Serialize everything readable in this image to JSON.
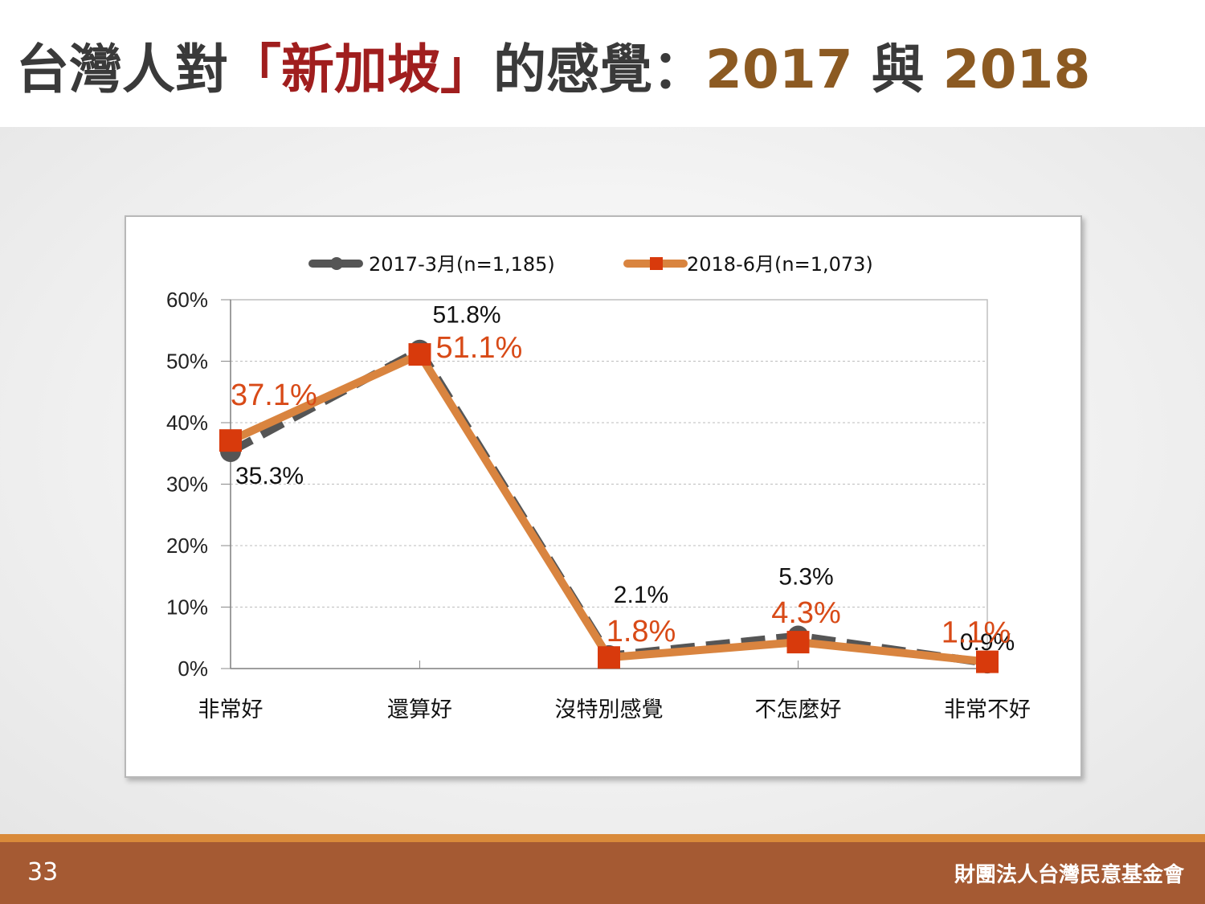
{
  "slide": {
    "title_part1": "台灣人對",
    "title_keyword": "「新加坡」",
    "title_part2": "的感覺：",
    "title_year1": "2017",
    "title_joiner": " 與 ",
    "title_year2": "2018",
    "page_number": "33",
    "organization": "財團法人台灣民意基金會"
  },
  "chart_data": {
    "type": "line",
    "categories": [
      "非常好",
      "還算好",
      "沒特別感覺",
      "不怎麼好",
      "非常不好"
    ],
    "ylim": [
      0,
      60
    ],
    "yticks": [
      "0%",
      "10%",
      "20%",
      "30%",
      "40%",
      "50%",
      "60%"
    ],
    "grid": true,
    "legend_position": "top",
    "series": [
      {
        "name": "2017-3月(n=1,185)",
        "values": [
          35.3,
          51.8,
          2.1,
          5.3,
          0.9
        ],
        "labels": [
          "35.3%",
          "51.8%",
          "2.1%",
          "5.3%",
          "0.9%"
        ],
        "color": "#555555",
        "line_style": "dashed",
        "marker": "circle"
      },
      {
        "name": "2018-6月(n=1,073)",
        "values": [
          37.1,
          51.1,
          1.8,
          4.3,
          1.1
        ],
        "labels": [
          "37.1%",
          "51.1%",
          "1.8%",
          "4.3%",
          "1.1%"
        ],
        "color": "#d9843f",
        "marker_color": "#d83a0c",
        "line_style": "solid",
        "marker": "square"
      }
    ]
  }
}
